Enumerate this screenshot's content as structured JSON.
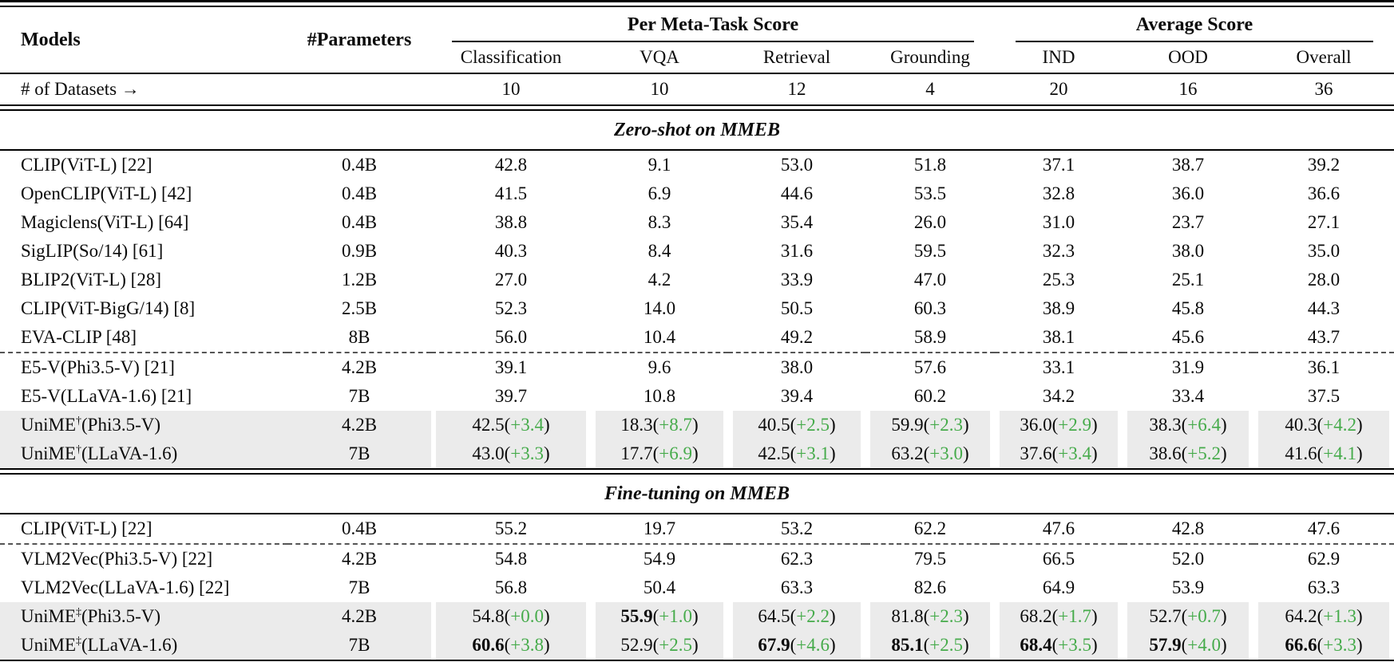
{
  "header": {
    "models_label": "Models",
    "parameters_label": "#Parameters",
    "group1": "Per Meta-Task Score",
    "group2": "Average Score",
    "subcols": [
      "Classification",
      "VQA",
      "Retrieval",
      "Grounding",
      "IND",
      "OOD",
      "Overall"
    ],
    "datasets_label": "# of Datasets →",
    "datasets_counts": [
      "10",
      "10",
      "12",
      "4",
      "20",
      "16",
      "36"
    ]
  },
  "colors": {
    "delta_green": "#46ab4b",
    "highlight_bg": "#ebebeb"
  },
  "sections": [
    {
      "title": "Zero-shot on MMEB",
      "rows": [
        {
          "name": "CLIP(ViT-L) [22]",
          "params": "0.4B",
          "cells": [
            {
              "v": "42.8"
            },
            {
              "v": "9.1"
            },
            {
              "v": "53.0"
            },
            {
              "v": "51.8"
            },
            {
              "v": "37.1"
            },
            {
              "v": "38.7"
            },
            {
              "v": "39.2"
            }
          ]
        },
        {
          "name": "OpenCLIP(ViT-L) [42]",
          "params": "0.4B",
          "cells": [
            {
              "v": "41.5"
            },
            {
              "v": "6.9"
            },
            {
              "v": "44.6"
            },
            {
              "v": "53.5"
            },
            {
              "v": "32.8"
            },
            {
              "v": "36.0"
            },
            {
              "v": "36.6"
            }
          ]
        },
        {
          "name": "Magiclens(ViT-L) [64]",
          "params": "0.4B",
          "cells": [
            {
              "v": "38.8"
            },
            {
              "v": "8.3"
            },
            {
              "v": "35.4"
            },
            {
              "v": "26.0"
            },
            {
              "v": "31.0"
            },
            {
              "v": "23.7"
            },
            {
              "v": "27.1"
            }
          ]
        },
        {
          "name": "SigLIP(So/14) [61]",
          "params": "0.9B",
          "cells": [
            {
              "v": "40.3"
            },
            {
              "v": "8.4"
            },
            {
              "v": "31.6"
            },
            {
              "v": "59.5"
            },
            {
              "v": "32.3"
            },
            {
              "v": "38.0"
            },
            {
              "v": "35.0"
            }
          ]
        },
        {
          "name": "BLIP2(ViT-L) [28]",
          "params": "1.2B",
          "cells": [
            {
              "v": "27.0"
            },
            {
              "v": "4.2"
            },
            {
              "v": "33.9"
            },
            {
              "v": "47.0"
            },
            {
              "v": "25.3"
            },
            {
              "v": "25.1"
            },
            {
              "v": "28.0"
            }
          ]
        },
        {
          "name": "CLIP(ViT-BigG/14) [8]",
          "params": "2.5B",
          "cells": [
            {
              "v": "52.3"
            },
            {
              "v": "14.0"
            },
            {
              "v": "50.5"
            },
            {
              "v": "60.3"
            },
            {
              "v": "38.9"
            },
            {
              "v": "45.8"
            },
            {
              "v": "44.3"
            }
          ]
        },
        {
          "name": "EVA-CLIP [48]",
          "params": "8B",
          "cells": [
            {
              "v": "56.0"
            },
            {
              "v": "10.4"
            },
            {
              "v": "49.2"
            },
            {
              "v": "58.9"
            },
            {
              "v": "38.1"
            },
            {
              "v": "45.6"
            },
            {
              "v": "43.7"
            }
          ]
        },
        {
          "name": "E5-V(Phi3.5-V) [21]",
          "params": "4.2B",
          "dashed": true,
          "cells": [
            {
              "v": "39.1"
            },
            {
              "v": "9.6"
            },
            {
              "v": "38.0"
            },
            {
              "v": "57.6"
            },
            {
              "v": "33.1"
            },
            {
              "v": "31.9"
            },
            {
              "v": "36.1"
            }
          ]
        },
        {
          "name": "E5-V(LLaVA-1.6) [21]",
          "params": "7B",
          "cells": [
            {
              "v": "39.7"
            },
            {
              "v": "10.8"
            },
            {
              "v": "39.4"
            },
            {
              "v": "60.2"
            },
            {
              "v": "34.2"
            },
            {
              "v": "33.4"
            },
            {
              "v": "37.5"
            }
          ]
        },
        {
          "name": "UniME",
          "sup": "†",
          "rest": "(Phi3.5-V)",
          "params": "4.2B",
          "hl": true,
          "cells": [
            {
              "v": "42.5",
              "d": "+3.4"
            },
            {
              "v": "18.3",
              "d": "+8.7"
            },
            {
              "v": "40.5",
              "d": "+2.5"
            },
            {
              "v": "59.9",
              "d": "+2.3"
            },
            {
              "v": "36.0",
              "d": "+2.9"
            },
            {
              "v": "38.3",
              "d": "+6.4"
            },
            {
              "v": "40.3",
              "d": "+4.2"
            }
          ]
        },
        {
          "name": "UniME",
          "sup": "†",
          "rest": "(LLaVA-1.6)",
          "params": "7B",
          "hl": true,
          "cells": [
            {
              "v": "43.0",
              "d": "+3.3"
            },
            {
              "v": "17.7",
              "d": "+6.9"
            },
            {
              "v": "42.5",
              "d": "+3.1"
            },
            {
              "v": "63.2",
              "d": "+3.0"
            },
            {
              "v": "37.6",
              "d": "+3.4"
            },
            {
              "v": "38.6",
              "d": "+5.2"
            },
            {
              "v": "41.6",
              "d": "+4.1"
            }
          ]
        }
      ]
    },
    {
      "title": "Fine-tuning on MMEB",
      "rows": [
        {
          "name": "CLIP(ViT-L) [22]",
          "params": "0.4B",
          "cells": [
            {
              "v": "55.2"
            },
            {
              "v": "19.7"
            },
            {
              "v": "53.2"
            },
            {
              "v": "62.2"
            },
            {
              "v": "47.6"
            },
            {
              "v": "42.8"
            },
            {
              "v": "47.6"
            }
          ]
        },
        {
          "name": "VLM2Vec(Phi3.5-V) [22]",
          "params": "4.2B",
          "dashed": true,
          "cells": [
            {
              "v": "54.8"
            },
            {
              "v": "54.9"
            },
            {
              "v": "62.3"
            },
            {
              "v": "79.5"
            },
            {
              "v": "66.5"
            },
            {
              "v": "52.0"
            },
            {
              "v": "62.9"
            }
          ]
        },
        {
          "name": "VLM2Vec(LLaVA-1.6) [22]",
          "params": "7B",
          "cells": [
            {
              "v": "56.8"
            },
            {
              "v": "50.4"
            },
            {
              "v": "63.3"
            },
            {
              "v": "82.6"
            },
            {
              "v": "64.9"
            },
            {
              "v": "53.9"
            },
            {
              "v": "63.3"
            }
          ]
        },
        {
          "name": "UniME",
          "sup": "‡",
          "rest": "(Phi3.5-V)",
          "params": "4.2B",
          "hl": true,
          "cells": [
            {
              "v": "54.8",
              "d": "+0.0"
            },
            {
              "v": "55.9",
              "d": "+1.0",
              "b": true
            },
            {
              "v": "64.5",
              "d": "+2.2"
            },
            {
              "v": "81.8",
              "d": "+2.3"
            },
            {
              "v": "68.2",
              "d": "+1.7"
            },
            {
              "v": "52.7",
              "d": "+0.7"
            },
            {
              "v": "64.2",
              "d": "+1.3"
            }
          ]
        },
        {
          "name": "UniME",
          "sup": "‡",
          "rest": "(LLaVA-1.6)",
          "params": "7B",
          "hl": true,
          "cells": [
            {
              "v": "60.6",
              "d": "+3.8",
              "b": true
            },
            {
              "v": "52.9",
              "d": "+2.5"
            },
            {
              "v": "67.9",
              "d": "+4.6",
              "b": true
            },
            {
              "v": "85.1",
              "d": "+2.5",
              "b": true
            },
            {
              "v": "68.4",
              "d": "+3.5",
              "b": true
            },
            {
              "v": "57.9",
              "d": "+4.0",
              "b": true
            },
            {
              "v": "66.6",
              "d": "+3.3",
              "b": true
            }
          ]
        }
      ]
    }
  ]
}
